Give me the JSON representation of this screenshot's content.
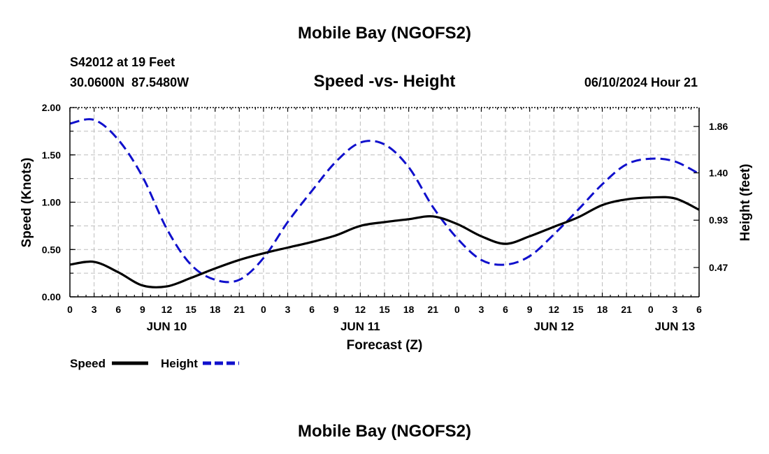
{
  "header": {
    "title": "Mobile Bay (NGOFS2)",
    "station_line": "S42012 at 19 Feet",
    "coords_line": "30.0600N  87.5480W",
    "subtitle": "Speed -vs- Height",
    "run_time": "06/10/2024 Hour 21"
  },
  "footer": {
    "title": "Mobile Bay (NGOFS2)"
  },
  "legend": {
    "speed_label": "Speed",
    "height_label": "Height"
  },
  "colors": {
    "speed": "#000000",
    "height": "#1010cc"
  },
  "chart_data": {
    "type": "line",
    "title": "Speed -vs- Height",
    "xlabel": "Forecast (Z)",
    "ylabel": "Speed (Knots)",
    "y2label": "Height (feet)",
    "x_range_hours": [
      0,
      78
    ],
    "x_tick_labels": [
      "0",
      "3",
      "6",
      "9",
      "12",
      "15",
      "18",
      "21",
      "0",
      "3",
      "6",
      "9",
      "12",
      "15",
      "18",
      "21",
      "0",
      "3",
      "6",
      "9",
      "12",
      "15",
      "18",
      "21",
      "0",
      "3",
      "6"
    ],
    "date_labels": [
      {
        "label": "JUN 10",
        "hour": 12
      },
      {
        "label": "JUN 11",
        "hour": 36
      },
      {
        "label": "JUN 12",
        "hour": 60
      },
      {
        "label": "JUN 13",
        "hour": 75
      }
    ],
    "ylim": [
      0,
      2
    ],
    "y_ticks": [
      "0.00",
      "0.50",
      "1.00",
      "1.50",
      "2.00"
    ],
    "y2_ticks": [
      {
        "label": "0.47",
        "speed_equiv": 0.31
      },
      {
        "label": "0.93",
        "speed_equiv": 0.81
      },
      {
        "label": "1.40",
        "speed_equiv": 1.31
      },
      {
        "label": "1.86",
        "speed_equiv": 1.8
      }
    ],
    "grid": true,
    "legend_position": "bottom-left",
    "series": [
      {
        "name": "Speed",
        "style": "solid",
        "x": [
          0,
          3,
          6,
          9,
          12,
          15,
          18,
          21,
          24,
          27,
          30,
          33,
          36,
          39,
          42,
          45,
          48,
          51,
          54,
          57,
          60,
          63,
          66,
          69,
          72,
          75,
          78
        ],
        "values": [
          0.34,
          0.37,
          0.26,
          0.12,
          0.11,
          0.2,
          0.3,
          0.39,
          0.46,
          0.52,
          0.58,
          0.65,
          0.75,
          0.79,
          0.82,
          0.85,
          0.77,
          0.64,
          0.56,
          0.64,
          0.74,
          0.84,
          0.97,
          1.03,
          1.05,
          1.04,
          0.92
        ]
      },
      {
        "name": "Height",
        "style": "dashed",
        "x": [
          0,
          3,
          6,
          9,
          12,
          15,
          18,
          21,
          24,
          27,
          30,
          33,
          36,
          39,
          42,
          45,
          48,
          51,
          54,
          57,
          60,
          63,
          66,
          69,
          72,
          75,
          78
        ],
        "values": [
          1.83,
          1.87,
          1.66,
          1.27,
          0.72,
          0.34,
          0.18,
          0.18,
          0.41,
          0.79,
          1.12,
          1.43,
          1.63,
          1.61,
          1.37,
          0.95,
          0.62,
          0.39,
          0.34,
          0.43,
          0.66,
          0.92,
          1.19,
          1.4,
          1.46,
          1.43,
          1.3
        ]
      }
    ]
  }
}
